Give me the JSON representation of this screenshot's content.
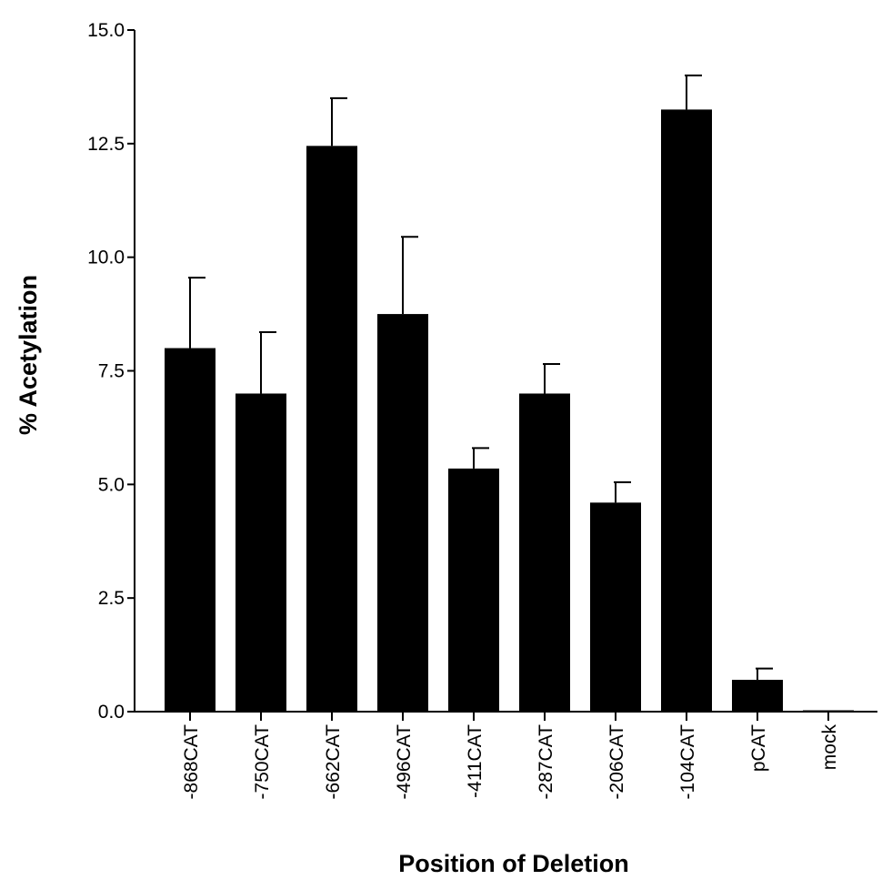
{
  "chart_data": {
    "type": "bar",
    "xlabel": "Position of Deletion",
    "ylabel": "% Acetylation",
    "ylim": [
      0,
      15
    ],
    "yticks": [
      0,
      2.5,
      5,
      7.5,
      10,
      12.5,
      15
    ],
    "ytick_labels": [
      "0.0",
      "2.5",
      "5.0",
      "7.5",
      "10.0",
      "12.5",
      "15.0"
    ],
    "categories": [
      "-868CAT",
      "-750CAT",
      "-662CAT",
      "-496CAT",
      "-411CAT",
      "-287CAT",
      "-206CAT",
      "-104CAT",
      "pCAT",
      "mock"
    ],
    "values": [
      8.0,
      7.0,
      12.45,
      8.75,
      5.35,
      7.0,
      4.6,
      13.25,
      0.7,
      0.02
    ],
    "error_upper": [
      9.55,
      8.35,
      13.5,
      10.45,
      5.8,
      7.65,
      5.05,
      14.0,
      0.95,
      null
    ],
    "bar_color": "#000000",
    "grid": false,
    "legend": "none"
  }
}
